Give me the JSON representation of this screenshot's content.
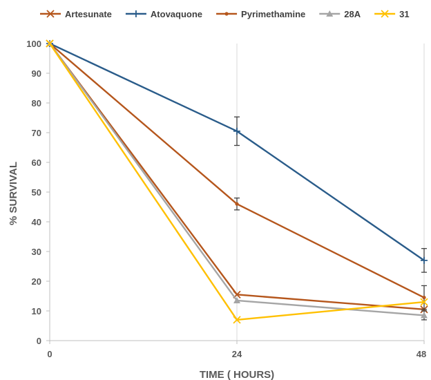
{
  "chart_data": {
    "type": "line",
    "title": "",
    "xlabel": "TIME ( HOURS)",
    "ylabel": "% SURVIVAL",
    "x": [
      0,
      24,
      48
    ],
    "x_tick_labels": [
      "0",
      "24",
      "48"
    ],
    "ylim": [
      0,
      100
    ],
    "y_ticks": [
      0,
      10,
      20,
      30,
      40,
      50,
      60,
      70,
      80,
      90,
      100
    ],
    "grid": "vertical gridlines at x ticks",
    "legend_position": "top",
    "series": [
      {
        "name": "Artesunate",
        "values": [
          100,
          15.5,
          10.5
        ],
        "color": "#b5561c",
        "marker": "x",
        "errors": [
          0,
          0,
          0
        ]
      },
      {
        "name": "Atovaquone",
        "values": [
          100,
          70.5,
          27
        ],
        "color": "#2a5c8a",
        "marker": "plus",
        "errors": [
          0,
          4.8,
          4
        ]
      },
      {
        "name": "Pyrimethamine",
        "values": [
          100,
          46,
          14.5
        ],
        "color": "#b5561c",
        "marker": "dot",
        "errors": [
          0,
          2,
          4
        ]
      },
      {
        "name": "28A",
        "values": [
          100,
          13.5,
          8.5
        ],
        "color": "#a5a5a5",
        "marker": "triangle",
        "errors": [
          0,
          0,
          1.5
        ]
      },
      {
        "name": "31",
        "values": [
          100,
          7,
          13
        ],
        "color": "#ffc000",
        "marker": "x",
        "errors": [
          0,
          0,
          0
        ]
      }
    ]
  }
}
